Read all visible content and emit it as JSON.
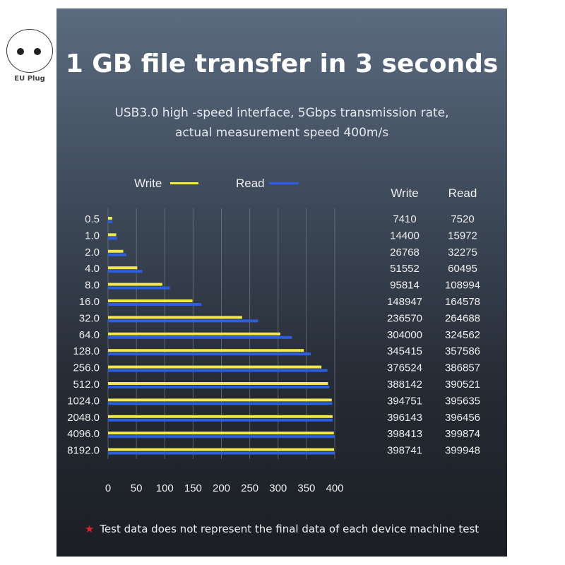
{
  "badge": {
    "label": "EU Plug",
    "icon": "eu-plug-icon"
  },
  "title": "1 GB file transfer in 3 seconds",
  "subtitle_lines": [
    "USB3.0 high -speed interface, 5Gbps transmission rate,",
    "actual measurement speed 400m/s"
  ],
  "footer": {
    "note": "Test data does not represent the final data of each device machine test",
    "star_color": "#e0202a"
  },
  "table": {
    "headers": [
      "Write",
      "Read"
    ]
  },
  "chart_data": {
    "type": "bar",
    "orientation": "horizontal",
    "categories": [
      "0.5",
      "1.0",
      "2.0",
      "4.0",
      "8.0",
      "16.0",
      "32.0",
      "64.0",
      "128.0",
      "256.0",
      "512.0",
      "1024.0",
      "2048.0",
      "4096.0",
      "8192.0"
    ],
    "series": [
      {
        "name": "Write",
        "color": "#f2e84a",
        "values": [
          7410,
          14400,
          26768,
          51552,
          95814,
          148947,
          236570,
          304000,
          345415,
          376524,
          388142,
          394751,
          396143,
          398413,
          398741
        ]
      },
      {
        "name": "Read",
        "color": "#2b5fe0",
        "values": [
          7520,
          15972,
          32275,
          60495,
          108994,
          164578,
          264688,
          324562,
          357586,
          386857,
          390521,
          395635,
          396456,
          399874,
          399948
        ]
      }
    ],
    "xticks": [
      "0",
      "50",
      "100",
      "150",
      "200",
      "250",
      "300",
      "350",
      "400"
    ],
    "xlim": [
      0,
      400
    ],
    "grid": true,
    "legend": "top"
  }
}
